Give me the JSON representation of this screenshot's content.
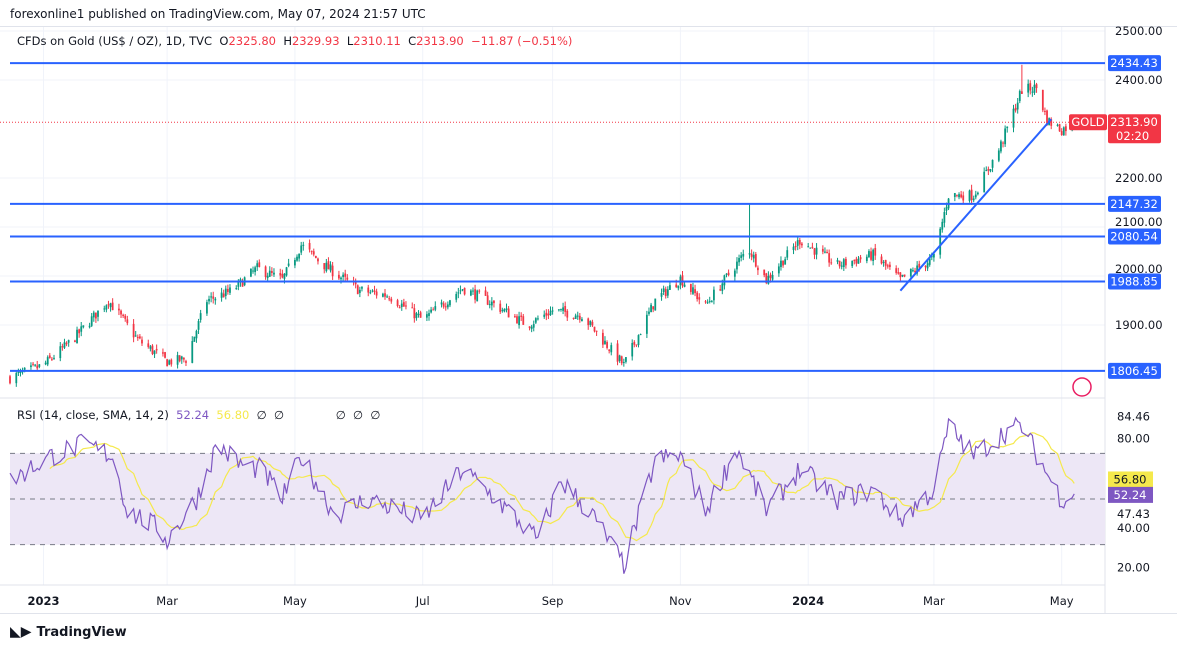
{
  "header": {
    "published": "forexonline1 published on TradingView.com, May 07, 2024 21:57 UTC"
  },
  "legend": {
    "symbol": "CFDs on Gold (US$ / OZ), 1D, TVC",
    "o_label": "O",
    "o": "2325.80",
    "h_label": "H",
    "h": "2329.93",
    "l_label": "L",
    "l": "2310.11",
    "c_label": "C",
    "c": "2313.90",
    "change": "−11.87 (−0.51%)"
  },
  "rsi_legend": {
    "title": "RSI (14, close, SMA, 14, 2)",
    "rsi": "52.24",
    "sma": "56.80",
    "na1": "∅",
    "na2": "∅",
    "na3": "∅",
    "na4": "∅",
    "na5": "∅"
  },
  "price_tag": {
    "symbol": "GOLD",
    "price": "2313.90",
    "countdown": "02:20"
  },
  "footer": {
    "brand": "TradingView"
  },
  "colors": {
    "up": "#089981",
    "down": "#f23645",
    "level": "#2962ff",
    "rsi": "#7e57c2",
    "rsi_sma": "#f5e94c",
    "rsi_band": "#ede7f6"
  },
  "chart_data": [
    {
      "type": "candlestick",
      "ylim": [
        1760,
        2520
      ],
      "yticks": [
        1900,
        2000,
        2100,
        2200,
        2400,
        2500
      ],
      "yticklabels": [
        "1900.00",
        "2000.00",
        "2100.00",
        "2200.00",
        "2400.00",
        "2500.00"
      ],
      "xticklabels": [
        {
          "d": "2023-01-01",
          "t": "2023"
        },
        {
          "d": "2023-03-01",
          "t": "Mar"
        },
        {
          "d": "2023-05-01",
          "t": "May"
        },
        {
          "d": "2023-07-01",
          "t": "Jul"
        },
        {
          "d": "2023-09-01",
          "t": "Sep"
        },
        {
          "d": "2023-11-01",
          "t": "Nov"
        },
        {
          "d": "2024-01-01",
          "t": "2024"
        },
        {
          "d": "2024-03-01",
          "t": "Mar"
        },
        {
          "d": "2024-05-01",
          "t": "May"
        }
      ],
      "horizontal_levels": [
        "2434.43",
        "2147.32",
        "2080.54",
        "1988.85",
        "1806.45"
      ],
      "trendline": [
        {
          "d": "2024-02-14",
          "p": 1970
        },
        {
          "d": "2024-04-26",
          "p": 2320
        }
      ],
      "approx_closes": [
        [
          "2022-12-16",
          1792
        ],
        [
          "2023-01-01",
          1818
        ],
        [
          "2023-01-15",
          1870
        ],
        [
          "2023-02-01",
          1950
        ],
        [
          "2023-02-15",
          1870
        ],
        [
          "2023-03-01",
          1825
        ],
        [
          "2023-03-10",
          1830
        ],
        [
          "2023-03-20",
          1950
        ],
        [
          "2023-04-01",
          1970
        ],
        [
          "2023-04-13",
          2016
        ],
        [
          "2023-04-25",
          1992
        ],
        [
          "2023-05-04",
          2063
        ],
        [
          "2023-05-15",
          2022
        ],
        [
          "2023-06-01",
          1970
        ],
        [
          "2023-06-15",
          1960
        ],
        [
          "2023-07-01",
          1910
        ],
        [
          "2023-07-20",
          1975
        ],
        [
          "2023-08-01",
          1950
        ],
        [
          "2023-08-20",
          1900
        ],
        [
          "2023-09-01",
          1930
        ],
        [
          "2023-09-15",
          1920
        ],
        [
          "2023-10-05",
          1818
        ],
        [
          "2023-10-20",
          1950
        ],
        [
          "2023-11-01",
          1995
        ],
        [
          "2023-11-13",
          1940
        ],
        [
          "2023-12-01",
          2043
        ],
        [
          "2023-12-04",
          2053
        ],
        [
          "2023-12-12",
          1992
        ],
        [
          "2023-12-28",
          2073
        ],
        [
          "2024-01-15",
          2022
        ],
        [
          "2024-02-01",
          2043
        ],
        [
          "2024-02-14",
          1992
        ],
        [
          "2024-03-01",
          2037
        ],
        [
          "2024-03-08",
          2165
        ],
        [
          "2024-03-20",
          2165
        ],
        [
          "2024-04-01",
          2257
        ],
        [
          "2024-04-12",
          2380
        ],
        [
          "2024-04-19",
          2384
        ],
        [
          "2024-04-24",
          2318
        ],
        [
          "2024-05-01",
          2298
        ],
        [
          "2024-05-07",
          2313.9
        ]
      ]
    },
    {
      "type": "line",
      "title": "RSI (14, close, SMA, 14, 2)",
      "ylim": [
        14,
        90
      ],
      "band": [
        30,
        70
      ],
      "midline": 50,
      "yticklabels": [
        "20.00",
        "40.00",
        "47.43",
        "80.00",
        "84.46"
      ],
      "approx_rsi": [
        [
          "2022-12-16",
          58
        ],
        [
          "2023-01-05",
          69
        ],
        [
          "2023-01-20",
          74
        ],
        [
          "2023-02-03",
          69
        ],
        [
          "2023-02-10",
          45
        ],
        [
          "2023-02-25",
          37
        ],
        [
          "2023-03-01",
          32
        ],
        [
          "2023-03-15",
          50
        ],
        [
          "2023-03-25",
          74
        ],
        [
          "2023-04-05",
          65
        ],
        [
          "2023-04-15",
          63
        ],
        [
          "2023-04-25",
          50
        ],
        [
          "2023-05-04",
          69
        ],
        [
          "2023-05-20",
          43
        ],
        [
          "2023-06-05",
          50
        ],
        [
          "2023-06-20",
          45
        ],
        [
          "2023-07-01",
          41
        ],
        [
          "2023-07-20",
          63
        ],
        [
          "2023-08-05",
          50
        ],
        [
          "2023-08-25",
          32
        ],
        [
          "2023-09-05",
          58
        ],
        [
          "2023-09-20",
          43
        ],
        [
          "2023-10-05",
          21
        ],
        [
          "2023-10-20",
          67
        ],
        [
          "2023-11-01",
          69
        ],
        [
          "2023-11-13",
          45
        ],
        [
          "2023-11-28",
          72
        ],
        [
          "2023-12-12",
          45
        ],
        [
          "2023-12-28",
          63
        ],
        [
          "2024-01-15",
          50
        ],
        [
          "2024-02-01",
          54
        ],
        [
          "2024-02-14",
          41
        ],
        [
          "2024-03-01",
          54
        ],
        [
          "2024-03-08",
          82
        ],
        [
          "2024-03-20",
          69
        ],
        [
          "2024-04-05",
          80
        ],
        [
          "2024-04-12",
          82
        ],
        [
          "2024-04-24",
          61
        ],
        [
          "2024-05-01",
          50
        ],
        [
          "2024-05-07",
          52.24
        ]
      ]
    }
  ]
}
